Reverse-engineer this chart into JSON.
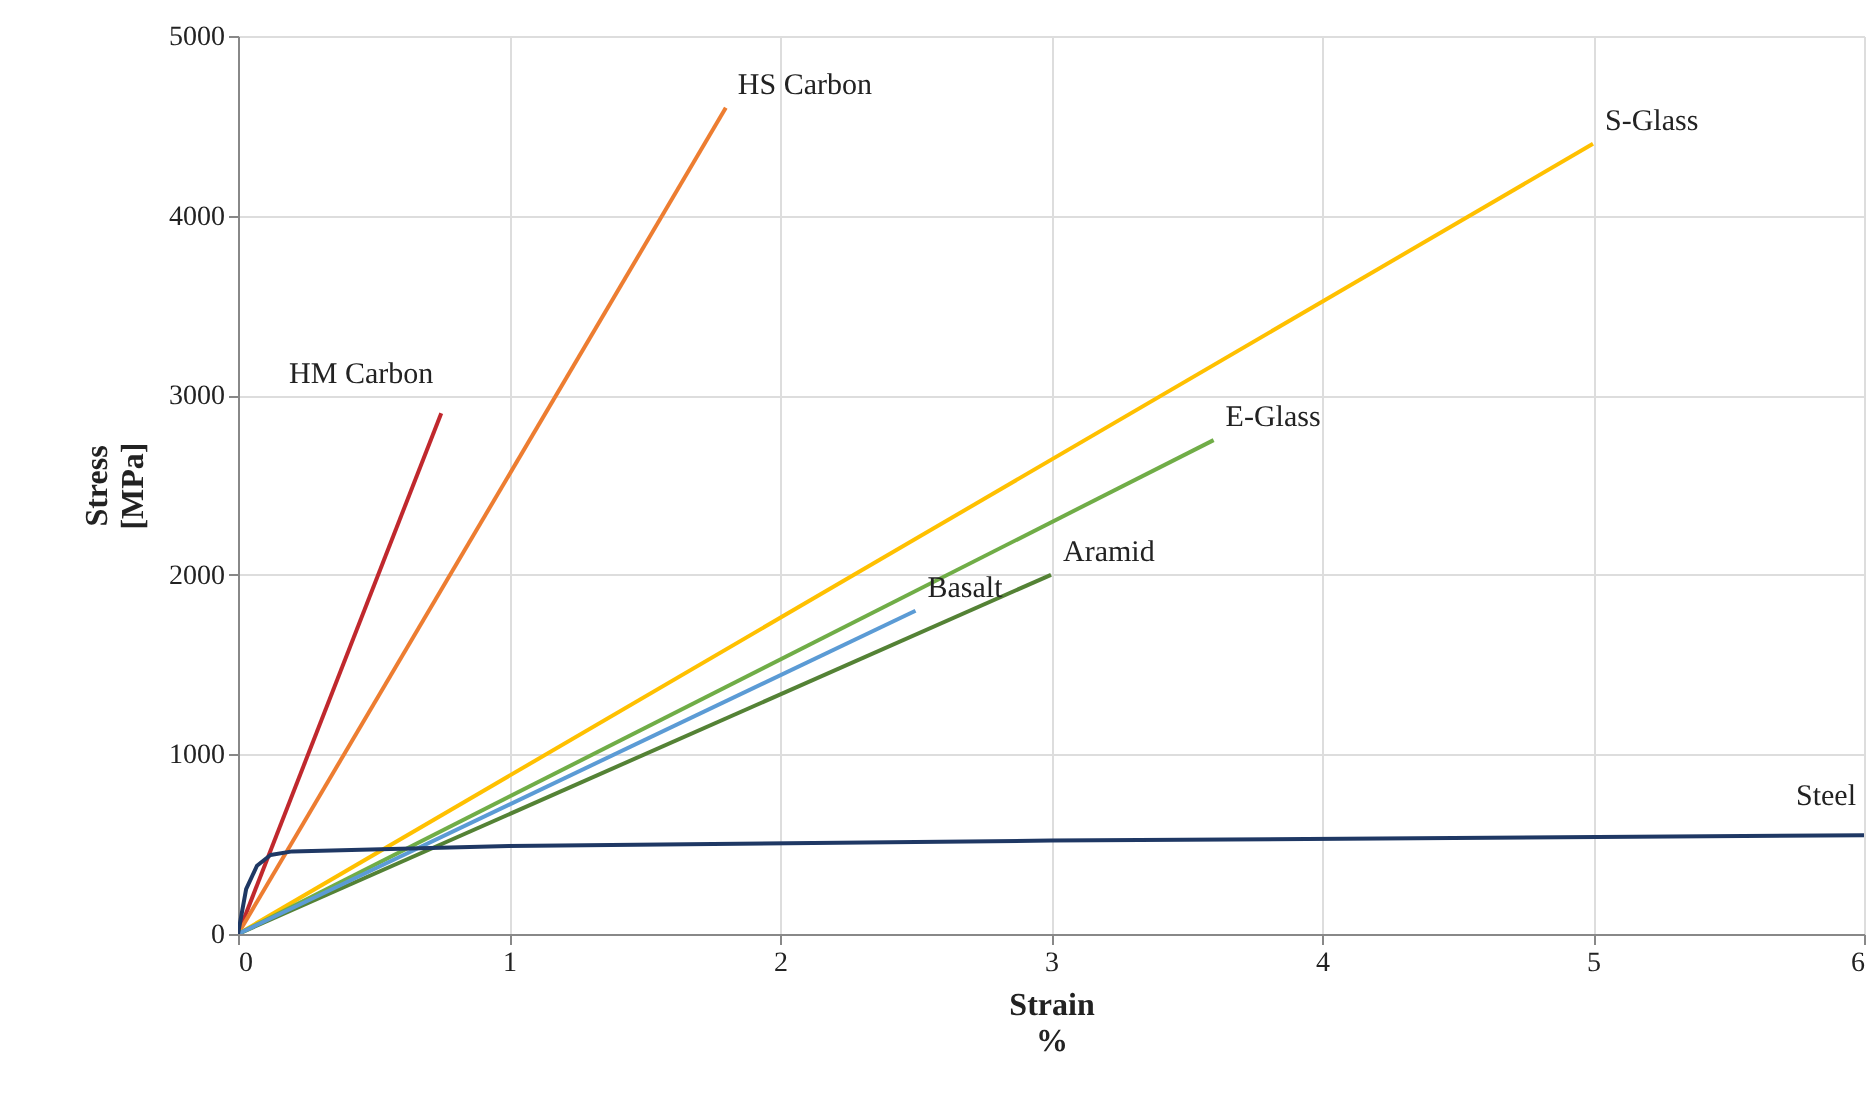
{
  "chart_data": {
    "type": "line",
    "xlabel": "Strain\n%",
    "ylabel": "Stress\n[MPa]",
    "xlim": [
      0,
      6
    ],
    "ylim": [
      0,
      5000
    ],
    "xticks": [
      0,
      1,
      2,
      3,
      4,
      5,
      6
    ],
    "yticks": [
      0,
      1000,
      2000,
      3000,
      4000,
      5000
    ],
    "grid": true,
    "marker": "none",
    "line_style": "solid",
    "series": [
      {
        "name": "HM Carbon",
        "color": "#c0282d",
        "x": [
          0,
          0.75
        ],
        "values": [
          0,
          2900
        ]
      },
      {
        "name": "HS Carbon",
        "color": "#ed7d31",
        "x": [
          0,
          1.8
        ],
        "values": [
          0,
          4600
        ]
      },
      {
        "name": "S-Glass",
        "color": "#ffc000",
        "x": [
          0,
          5
        ],
        "values": [
          0,
          4400
        ]
      },
      {
        "name": "E-Glass",
        "color": "#70ad47",
        "x": [
          0,
          3.6
        ],
        "values": [
          0,
          2750
        ]
      },
      {
        "name": "Aramid",
        "color": "#548235",
        "x": [
          0,
          3
        ],
        "values": [
          0,
          2000
        ]
      },
      {
        "name": "Basalt",
        "color": "#5b9bd5",
        "x": [
          0,
          2.5
        ],
        "values": [
          0,
          1800
        ]
      },
      {
        "name": "Steel",
        "color": "#1f3864",
        "x": [
          0,
          0.03,
          0.07,
          0.12,
          0.2,
          1,
          3,
          6
        ],
        "values": [
          0,
          250,
          380,
          440,
          460,
          490,
          520,
          550
        ]
      }
    ]
  }
}
